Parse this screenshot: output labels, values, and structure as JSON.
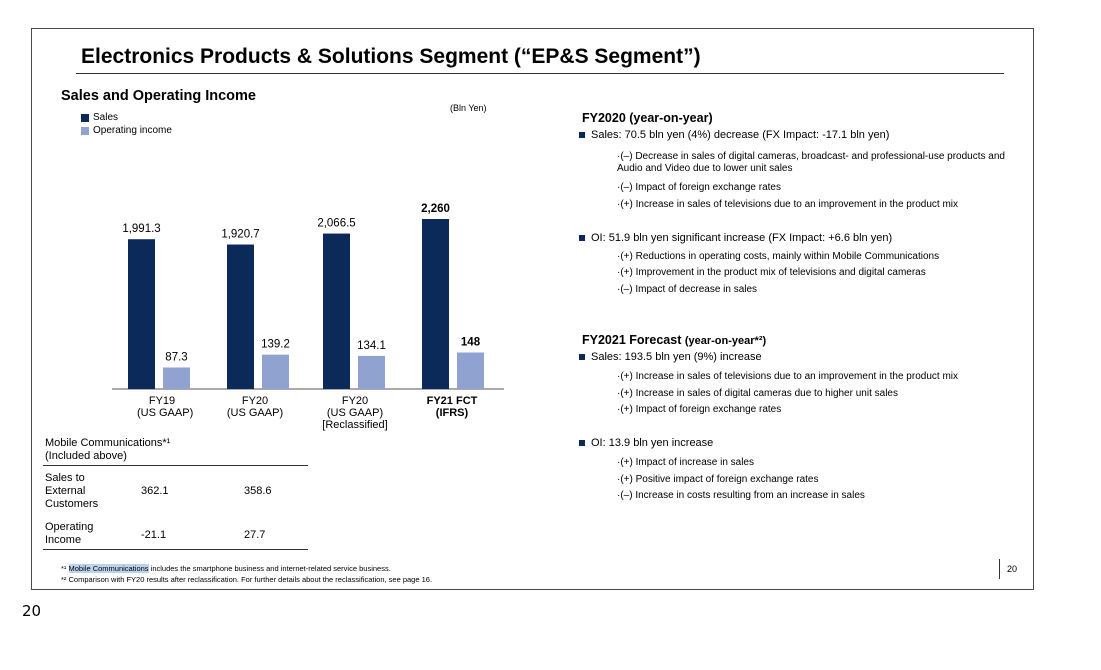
{
  "slide": {
    "title": "Electronics Products & Solutions Segment (“EP&S Segment”)",
    "page_number": "20"
  },
  "chart_data": {
    "type": "bar",
    "title": "Sales and Operating Income",
    "units": "(Bln Yen)",
    "legend": [
      "Sales",
      "Operating income"
    ],
    "categories": [
      {
        "line1": "FY19",
        "line2": "(US GAAP)",
        "line3": "",
        "bold": false
      },
      {
        "line1": "FY20",
        "line2": "(US GAAP)",
        "line3": "",
        "bold": false
      },
      {
        "line1": "FY20",
        "line2": "(US GAAP)",
        "line3": "[Reclassified]",
        "bold": false
      },
      {
        "line1": "FY21 FCT",
        "line2": "(IFRS)",
        "line3": "",
        "bold": true
      }
    ],
    "series": [
      {
        "name": "Sales",
        "color": "#0b2a5a",
        "values": [
          1991.3,
          1920.7,
          2066.5,
          2260
        ],
        "labels": [
          "1,991.3",
          "1,920.7",
          "2,066.5",
          "2,260"
        ]
      },
      {
        "name": "Operating income",
        "color": "#8fa2d0",
        "values": [
          87.3,
          139.2,
          134.1,
          148
        ],
        "labels": [
          "87.3",
          "139.2",
          "134.1",
          "148"
        ]
      }
    ]
  },
  "table": {
    "header": "Mobile Communications*¹",
    "subheader": "(Included above)",
    "rows": [
      {
        "label_lines": [
          "Sales to",
          "External",
          "Customers"
        ],
        "fy19": "362.1",
        "fy20": "358.6"
      },
      {
        "label_lines": [
          "Operating",
          "Income"
        ],
        "fy19": "-21.1",
        "fy20": "27.7"
      }
    ]
  },
  "footnotes": {
    "fn1_mark": "*¹",
    "fn1_highlight": "Mobile Communications",
    "fn1_rest": " includes the smartphone business and internet-related service business.",
    "fn2_mark": "*²",
    "fn2_text": "Comparison with FY20 results after reclassification. For further details about the reclassification, see page 16."
  },
  "right": {
    "fy2020": {
      "heading": "FY2020 (year-on-year)",
      "sales": "Sales: 70.5 bln yen (4%) decrease (FX Impact: -17.1 bln yen)",
      "sales_items": [
        "·(–) Decrease in sales of digital cameras, broadcast- and professional-use products and Audio and Video due to lower unit sales",
        "·(–) Impact of foreign exchange rates",
        "·(+) Increase in sales of televisions due to an improvement in the product mix"
      ],
      "oi": "OI: 51.9 bln yen significant increase (FX Impact: +6.6 bln yen)",
      "oi_items": [
        "·(+) Reductions in operating costs, mainly within Mobile Communications",
        "·(+) Improvement in the product mix of televisions and digital cameras",
        "·(–) Impact of decrease in sales"
      ]
    },
    "fy2021": {
      "heading_main": "FY2021 Forecast",
      "heading_sub": "(year-on-year*²)",
      "sales": "Sales: 193.5 bln yen (9%) increase",
      "sales_items": [
        "·(+) Increase in sales of televisions due to an improvement in the product mix",
        "·(+) Increase in sales of digital cameras due to higher unit sales",
        "·(+) Impact of foreign exchange rates"
      ],
      "oi": "OI: 13.9 bln yen increase",
      "oi_items": [
        "·(+) Impact of increase in sales",
        "·(+) Positive impact of foreign exchange rates",
        "·(–) Increase in costs resulting from an increase in sales"
      ]
    }
  },
  "below_slide_page": "20"
}
